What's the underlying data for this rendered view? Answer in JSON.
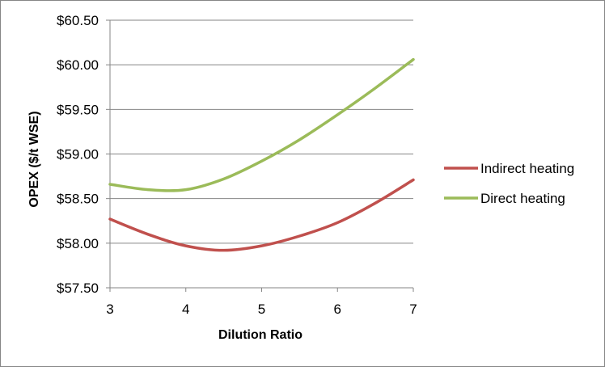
{
  "chart_data": {
    "type": "line",
    "title": "",
    "xlabel": "Dilution Ratio",
    "ylabel": "OPEX ($/t WSE)",
    "x_ticks": [
      "3",
      "4",
      "5",
      "6",
      "7"
    ],
    "y_ticks": [
      "$57.50",
      "$58.00",
      "$58.50",
      "$59.00",
      "$59.50",
      "$60.00",
      "$60.50"
    ],
    "xlim": [
      3,
      7
    ],
    "ylim": [
      57.5,
      60.5
    ],
    "grid": "horizontal",
    "legend_position": "right",
    "series": [
      {
        "name": "Indirect heating",
        "color": "#C0504D",
        "x": [
          3,
          3.5,
          4,
          4.5,
          5,
          5.5,
          6,
          6.5,
          7
        ],
        "y": [
          58.27,
          58.1,
          57.97,
          57.92,
          57.97,
          58.08,
          58.23,
          58.45,
          58.71
        ]
      },
      {
        "name": "Direct heating",
        "color": "#9BBB59",
        "x": [
          3,
          3.5,
          4,
          4.5,
          5,
          5.5,
          6,
          6.5,
          7
        ],
        "y": [
          58.66,
          58.6,
          58.6,
          58.72,
          58.92,
          59.16,
          59.44,
          59.74,
          60.06
        ]
      }
    ]
  }
}
